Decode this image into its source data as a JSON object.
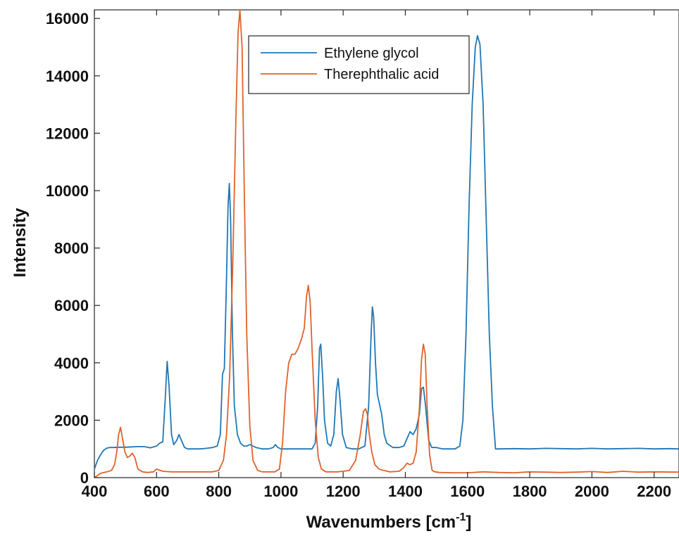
{
  "chart_data": {
    "type": "line",
    "xlabel": "Wavenumbers [cm",
    "xlabel_sup": "-1",
    "xlabel_end": "]",
    "ylabel": "Intensity",
    "xlim": [
      400,
      2280
    ],
    "ylim": [
      0,
      16300
    ],
    "xticks": [
      400,
      600,
      800,
      1000,
      1200,
      1400,
      1600,
      1800,
      2000,
      2200
    ],
    "yticks": [
      0,
      2000,
      4000,
      6000,
      8000,
      10000,
      12000,
      14000,
      16000
    ],
    "legend_position": "top-center",
    "grid": false,
    "series": [
      {
        "name": "Ethylene glycol",
        "color": "#1f77b4",
        "x": [
          400,
          410,
          420,
          430,
          440,
          450,
          460,
          480,
          500,
          520,
          540,
          560,
          580,
          600,
          610,
          620,
          628,
          634,
          640,
          648,
          655,
          665,
          672,
          680,
          690,
          700,
          720,
          740,
          760,
          780,
          795,
          805,
          812,
          818,
          824,
          830,
          834,
          838,
          844,
          850,
          860,
          870,
          880,
          890,
          900,
          920,
          940,
          960,
          975,
          982,
          990,
          1000,
          1020,
          1040,
          1060,
          1080,
          1100,
          1110,
          1118,
          1124,
          1128,
          1134,
          1140,
          1150,
          1160,
          1170,
          1178,
          1184,
          1190,
          1198,
          1210,
          1230,
          1250,
          1270,
          1282,
          1290,
          1294,
          1298,
          1304,
          1310,
          1316,
          1324,
          1332,
          1340,
          1360,
          1380,
          1395,
          1405,
          1415,
          1425,
          1435,
          1445,
          1452,
          1458,
          1465,
          1475,
          1485,
          1500,
          1520,
          1540,
          1560,
          1575,
          1585,
          1595,
          1605,
          1615,
          1625,
          1632,
          1640,
          1650,
          1660,
          1670,
          1680,
          1690,
          1700,
          1750,
          1800,
          1850,
          1900,
          1950,
          2000,
          2050,
          2100,
          2150,
          2200,
          2250,
          2280
        ],
        "y": [
          300,
          600,
          800,
          950,
          1030,
          1050,
          1050,
          1060,
          1060,
          1070,
          1080,
          1080,
          1040,
          1100,
          1200,
          1250,
          2800,
          4050,
          3200,
          1500,
          1150,
          1300,
          1500,
          1300,
          1050,
          1000,
          1000,
          1000,
          1020,
          1050,
          1100,
          1500,
          3600,
          3800,
          6500,
          9500,
          10250,
          9000,
          5000,
          2500,
          1500,
          1200,
          1100,
          1100,
          1150,
          1050,
          1000,
          1000,
          1050,
          1150,
          1050,
          1000,
          1000,
          1000,
          1000,
          1000,
          1000,
          1200,
          2500,
          4500,
          4650,
          3500,
          2000,
          1200,
          1100,
          1500,
          3000,
          3450,
          2700,
          1500,
          1050,
          1000,
          1000,
          1100,
          2500,
          5000,
          5950,
          5600,
          4000,
          2900,
          2600,
          2200,
          1500,
          1200,
          1050,
          1050,
          1100,
          1350,
          1600,
          1500,
          1700,
          2200,
          3100,
          3150,
          2500,
          1300,
          1050,
          1050,
          1000,
          1000,
          1000,
          1100,
          2000,
          5000,
          9500,
          13000,
          15000,
          15400,
          15100,
          13000,
          9000,
          5000,
          2500,
          1000,
          1000,
          1010,
          1000,
          1020,
          1010,
          1000,
          1020,
          1000,
          1010,
          1020,
          1000,
          1010,
          1000
        ]
      },
      {
        "name": "Therephthalic acid",
        "color": "#e0622a",
        "x": [
          400,
          420,
          440,
          455,
          465,
          472,
          478,
          484,
          490,
          498,
          506,
          514,
          522,
          530,
          540,
          555,
          570,
          590,
          600,
          620,
          650,
          700,
          750,
          780,
          800,
          815,
          825,
          835,
          845,
          855,
          862,
          868,
          875,
          882,
          890,
          900,
          910,
          925,
          940,
          960,
          980,
          995,
          1005,
          1015,
          1025,
          1035,
          1045,
          1055,
          1065,
          1075,
          1082,
          1088,
          1094,
          1100,
          1110,
          1120,
          1130,
          1145,
          1160,
          1180,
          1200,
          1220,
          1240,
          1255,
          1265,
          1272,
          1278,
          1284,
          1292,
          1302,
          1315,
          1330,
          1350,
          1380,
          1395,
          1405,
          1415,
          1425,
          1435,
          1445,
          1452,
          1458,
          1464,
          1470,
          1478,
          1486,
          1495,
          1510,
          1550,
          1600,
          1650,
          1700,
          1750,
          1800,
          1850,
          1900,
          1950,
          2000,
          2050,
          2100,
          2150,
          2200,
          2280
        ],
        "y": [
          0,
          150,
          200,
          250,
          450,
          900,
          1500,
          1750,
          1400,
          900,
          700,
          750,
          850,
          700,
          300,
          200,
          180,
          200,
          300,
          220,
          200,
          200,
          200,
          200,
          250,
          600,
          1500,
          3500,
          7500,
          12500,
          15500,
          16300,
          15000,
          10000,
          5000,
          1800,
          600,
          250,
          200,
          200,
          200,
          300,
          1200,
          3000,
          4000,
          4300,
          4300,
          4500,
          4800,
          5200,
          6300,
          6700,
          6100,
          4500,
          2000,
          700,
          300,
          200,
          200,
          200,
          220,
          250,
          600,
          1500,
          2300,
          2400,
          2200,
          1500,
          900,
          450,
          300,
          250,
          200,
          220,
          350,
          500,
          450,
          500,
          900,
          2400,
          4100,
          4650,
          4300,
          2500,
          800,
          250,
          200,
          180,
          170,
          170,
          200,
          180,
          170,
          200,
          190,
          180,
          190,
          210,
          180,
          220,
          190,
          200,
          190
        ]
      }
    ]
  }
}
